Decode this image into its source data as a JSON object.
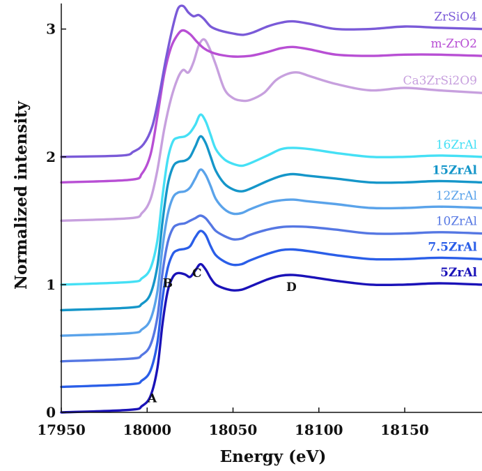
{
  "chart_data": {
    "type": "line",
    "title": "",
    "xlabel": "Energy (eV)",
    "ylabel": "Normalized intensity",
    "xlim": [
      17950,
      18195
    ],
    "ylim": [
      0,
      3.2
    ],
    "xticks": [
      17950,
      18000,
      18050,
      18100,
      18150
    ],
    "yticks": [
      0,
      1,
      2,
      3
    ],
    "grid": false,
    "legend": "inline labels at right end of each curve",
    "series": [
      {
        "name": "5ZrAl",
        "color": "#1a12b8",
        "bold": true,
        "offset": 0.0,
        "x": [
          17950,
          17990,
          17997,
          18002,
          18006,
          18009,
          18012,
          18015,
          18018,
          18022,
          18025,
          18028,
          18031,
          18034,
          18037,
          18040,
          18045,
          18050,
          18055,
          18060,
          18070,
          18078,
          18085,
          18095,
          18110,
          18130,
          18150,
          18170,
          18195
        ],
        "y": [
          0.0,
          0.02,
          0.05,
          0.13,
          0.35,
          0.7,
          0.95,
          1.06,
          1.09,
          1.08,
          1.06,
          1.11,
          1.16,
          1.12,
          1.05,
          1.0,
          0.97,
          0.955,
          0.96,
          0.985,
          1.04,
          1.07,
          1.075,
          1.06,
          1.03,
          1.0,
          1.0,
          1.01,
          1.0
        ]
      },
      {
        "name": "7.5ZrAl",
        "color": "#2a5ee8",
        "bold": true,
        "offset": 0.2,
        "x": [
          17950,
          17990,
          17997,
          18002,
          18006,
          18009,
          18012,
          18015,
          18018,
          18022,
          18025,
          18028,
          18031,
          18034,
          18037,
          18040,
          18045,
          18050,
          18055,
          18060,
          18070,
          18078,
          18085,
          18095,
          18110,
          18130,
          18150,
          18170,
          18195
        ],
        "y": [
          0.0,
          0.02,
          0.05,
          0.13,
          0.35,
          0.7,
          0.93,
          1.04,
          1.07,
          1.08,
          1.1,
          1.17,
          1.22,
          1.19,
          1.1,
          1.03,
          0.98,
          0.955,
          0.96,
          0.99,
          1.04,
          1.07,
          1.075,
          1.06,
          1.03,
          1.0,
          1.0,
          1.01,
          1.0
        ]
      },
      {
        "name": "10ZrAl",
        "color": "#5577e3",
        "bold": false,
        "offset": 0.4,
        "x": [
          17950,
          17990,
          17997,
          18002,
          18006,
          18009,
          18012,
          18015,
          18018,
          18022,
          18025,
          18028,
          18031,
          18034,
          18037,
          18040,
          18045,
          18050,
          18055,
          18060,
          18070,
          18078,
          18085,
          18095,
          18110,
          18130,
          18150,
          18170,
          18195
        ],
        "y": [
          0.0,
          0.02,
          0.05,
          0.13,
          0.35,
          0.7,
          0.93,
          1.04,
          1.07,
          1.08,
          1.1,
          1.12,
          1.14,
          1.12,
          1.07,
          1.02,
          0.98,
          0.955,
          0.96,
          0.99,
          1.03,
          1.05,
          1.055,
          1.05,
          1.03,
          1.0,
          1.0,
          1.01,
          1.0
        ]
      },
      {
        "name": "12ZrAl",
        "color": "#5aa3ea",
        "bold": false,
        "offset": 0.6,
        "x": [
          17950,
          17990,
          17997,
          18002,
          18006,
          18009,
          18012,
          18015,
          18018,
          18022,
          18025,
          18028,
          18031,
          18034,
          18037,
          18040,
          18045,
          18050,
          18055,
          18060,
          18070,
          18078,
          18085,
          18095,
          18110,
          18130,
          18150,
          18170,
          18195
        ],
        "y": [
          0.0,
          0.02,
          0.05,
          0.13,
          0.35,
          0.7,
          0.95,
          1.08,
          1.12,
          1.13,
          1.16,
          1.23,
          1.3,
          1.26,
          1.17,
          1.07,
          0.99,
          0.955,
          0.96,
          0.99,
          1.04,
          1.06,
          1.065,
          1.05,
          1.03,
          1.0,
          1.0,
          1.01,
          1.0
        ]
      },
      {
        "name": "15ZrAl",
        "color": "#1596c9",
        "bold": true,
        "offset": 0.8,
        "x": [
          17950,
          17990,
          17997,
          18002,
          18006,
          18009,
          18012,
          18015,
          18018,
          18022,
          18025,
          18028,
          18031,
          18034,
          18037,
          18040,
          18045,
          18050,
          18055,
          18060,
          18070,
          18078,
          18085,
          18095,
          18110,
          18130,
          18150,
          18170,
          18195
        ],
        "y": [
          0.0,
          0.02,
          0.05,
          0.13,
          0.35,
          0.7,
          0.98,
          1.12,
          1.16,
          1.17,
          1.2,
          1.28,
          1.36,
          1.31,
          1.2,
          1.09,
          0.99,
          0.945,
          0.93,
          0.95,
          1.01,
          1.05,
          1.065,
          1.05,
          1.03,
          1.0,
          1.0,
          1.01,
          1.0
        ]
      },
      {
        "name": "16ZrAl",
        "color": "#45e0f5",
        "bold": false,
        "offset": 1.0,
        "x": [
          17950,
          17990,
          17997,
          18002,
          18006,
          18009,
          18012,
          18015,
          18018,
          18022,
          18025,
          18028,
          18031,
          18034,
          18037,
          18040,
          18045,
          18050,
          18055,
          18060,
          18070,
          18078,
          18085,
          18095,
          18110,
          18130,
          18150,
          18170,
          18195
        ],
        "y": [
          0.0,
          0.02,
          0.05,
          0.13,
          0.35,
          0.7,
          0.98,
          1.12,
          1.15,
          1.16,
          1.19,
          1.25,
          1.33,
          1.28,
          1.17,
          1.06,
          0.98,
          0.945,
          0.93,
          0.95,
          1.01,
          1.06,
          1.07,
          1.06,
          1.03,
          1.0,
          1.0,
          1.01,
          1.0
        ]
      },
      {
        "name": "Ca3ZrSi2O9",
        "color": "#c7a0de",
        "bold": false,
        "offset": 1.5,
        "x": [
          17950,
          17990,
          17997,
          18002,
          18006,
          18010,
          18014,
          18018,
          18021,
          18024,
          18027,
          18030,
          18033,
          18036,
          18040,
          18045,
          18050,
          18055,
          18060,
          18068,
          18075,
          18082,
          18088,
          18095,
          18110,
          18130,
          18150,
          18170,
          18195
        ],
        "y": [
          0.0,
          0.02,
          0.06,
          0.17,
          0.4,
          0.72,
          0.96,
          1.12,
          1.18,
          1.16,
          1.24,
          1.37,
          1.42,
          1.36,
          1.22,
          1.03,
          0.96,
          0.94,
          0.945,
          1.0,
          1.1,
          1.15,
          1.16,
          1.13,
          1.07,
          1.02,
          1.04,
          1.02,
          1.0
        ]
      },
      {
        "name": "m-ZrO2",
        "color": "#b84fd4",
        "bold": false,
        "offset": 1.8,
        "x": [
          17950,
          17990,
          17997,
          18002,
          18006,
          18010,
          18014,
          18018,
          18021,
          18025,
          18029,
          18033,
          18037,
          18042,
          18050,
          18060,
          18070,
          18078,
          18085,
          18095,
          18110,
          18130,
          18150,
          18170,
          18195
        ],
        "y": [
          0.0,
          0.02,
          0.07,
          0.22,
          0.52,
          0.85,
          1.06,
          1.16,
          1.19,
          1.16,
          1.1,
          1.05,
          1.02,
          1.0,
          0.985,
          0.99,
          1.02,
          1.05,
          1.06,
          1.04,
          1.0,
          0.99,
          1.0,
          1.0,
          0.99
        ]
      },
      {
        "name": "ZrSiO4",
        "color": "#7a5ad8",
        "bold": false,
        "offset": 2.0,
        "x": [
          17950,
          17985,
          17992,
          17998,
          18003,
          18007,
          18011,
          18015,
          18018,
          18021,
          18024,
          18027,
          18030,
          18033,
          18037,
          18042,
          18050,
          18056,
          18062,
          18070,
          18078,
          18085,
          18095,
          18110,
          18130,
          18150,
          18170,
          18195
        ],
        "y": [
          0.0,
          0.01,
          0.04,
          0.1,
          0.24,
          0.48,
          0.77,
          1.02,
          1.16,
          1.18,
          1.13,
          1.1,
          1.11,
          1.08,
          1.02,
          0.99,
          0.965,
          0.955,
          0.975,
          1.02,
          1.05,
          1.06,
          1.04,
          1.0,
          1.0,
          1.02,
          1.01,
          1.0
        ]
      }
    ],
    "annotations": [
      {
        "text": "A",
        "x": 18003,
        "y": 0.08
      },
      {
        "text": "B",
        "x": 18012,
        "y": 0.98
      },
      {
        "text": "C",
        "x": 18029,
        "y": 1.06
      },
      {
        "text": "D",
        "x": 18084,
        "y": 0.95
      }
    ]
  }
}
